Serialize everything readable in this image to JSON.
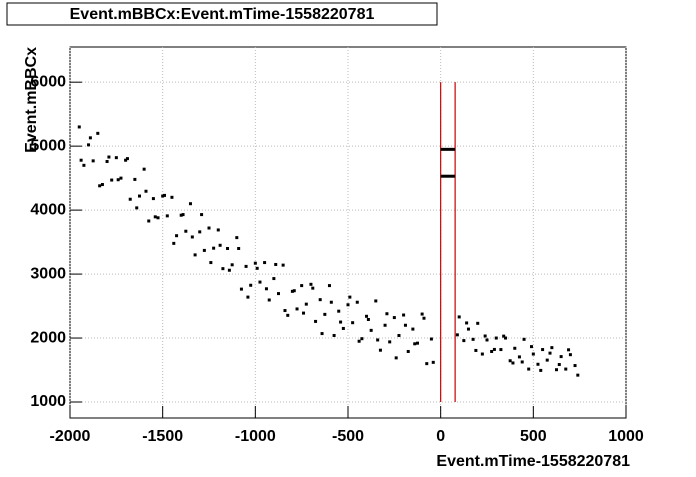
{
  "chart_data": {
    "type": "scatter",
    "title": "Event.mBBCx:Event.mTime-1558220781",
    "x_label": "Event.mTime-1558220781",
    "y_label": "Event.mBBCx",
    "xlim": [
      -2000,
      1000
    ],
    "ylim": [
      750,
      6550
    ],
    "xticks": [
      -2000,
      -1500,
      -1000,
      -500,
      0,
      500,
      1000
    ],
    "yticks": [
      1000,
      2000,
      3000,
      4000,
      5000,
      6000
    ],
    "grid": true,
    "color": "#000000",
    "cuts": [
      0,
      78
    ],
    "cut_range": [
      1000,
      6000
    ],
    "cut_color": "#cc0000",
    "segments": [
      4950,
      4530
    ],
    "x": [
      -1950,
      -1925,
      -1900,
      -1875,
      -1850,
      -1825,
      -1800,
      -1775,
      -1750,
      -1725,
      -1700,
      -1675,
      -1650,
      -1625,
      -1600,
      -1575,
      -1550,
      -1525,
      -1500,
      -1475,
      -1450,
      -1425,
      -1400,
      -1375,
      -1350,
      -1325,
      -1300,
      -1275,
      -1250,
      -1225,
      -1200,
      -1175,
      -1150,
      -1125,
      -1100,
      -1075,
      -1050,
      -1025,
      -1000,
      -975,
      -950,
      -925,
      -900,
      -875,
      -850,
      -825,
      -800,
      -775,
      -750,
      -725,
      -700,
      -675,
      -650,
      -625,
      -600,
      -575,
      -550,
      -525,
      -500,
      -475,
      -450,
      -425,
      -400,
      -375,
      -350,
      -325,
      -300,
      -275,
      -250,
      -225,
      -200,
      -175,
      -150,
      -125,
      -100,
      -75,
      -50,
      -1940,
      -1890,
      -1840,
      -1790,
      -1740,
      -1690,
      -1640,
      -1590,
      -1540,
      -1490,
      -1440,
      -1390,
      -1340,
      -1290,
      -1240,
      -1190,
      -1140,
      -1090,
      -1040,
      -990,
      -940,
      -890,
      -840,
      -790,
      -740,
      -690,
      -640,
      -590,
      -540,
      -490,
      -440,
      -390,
      -340,
      -290,
      -240,
      -190,
      -140,
      -90,
      -40,
      100,
      125,
      150,
      175,
      200,
      225,
      250,
      275,
      300,
      325,
      350,
      375,
      400,
      425,
      450,
      475,
      500,
      525,
      550,
      575,
      600,
      625,
      650,
      675,
      700,
      725,
      90,
      140,
      190,
      240,
      290,
      340,
      390,
      440,
      490,
      540,
      590,
      640,
      690,
      740
    ],
    "y": [
      5300,
      4700,
      5020,
      4770,
      5200,
      4400,
      4760,
      4470,
      4820,
      4500,
      4780,
      4170,
      4480,
      4220,
      4640,
      3830,
      4180,
      3880,
      4220,
      3910,
      4200,
      3600,
      3920,
      3670,
      4100,
      3300,
      3660,
      3370,
      3720,
      3405,
      3690,
      3085,
      3400,
      3145,
      3570,
      2765,
      3120,
      2825,
      3170,
      2875,
      3180,
      2595,
      2930,
      2695,
      3140,
      2355,
      2730,
      2455,
      2820,
      2530,
      2840,
      2260,
      2600,
      2370,
      2820,
      2040,
      2420,
      2150,
      2520,
      2240,
      2560,
      1990,
      2340,
      2120,
      2580,
      1810,
      2200,
      1940,
      2320,
      2040,
      2360,
      1790,
      2140,
      1920,
      2375,
      1600,
      1985,
      4780,
      5130,
      4380,
      4830,
      4475,
      4805,
      4035,
      4295,
      3895,
      4230,
      3480,
      3930,
      3580,
      3930,
      3180,
      3450,
      3060,
      3400,
      2640,
      3090,
      2770,
      3150,
      2430,
      2740,
      2390,
      2780,
      2070,
      2560,
      2250,
      2640,
      1950,
      2290,
      1970,
      2380,
      1690,
      2200,
      1910,
      2310,
      1620,
      2330,
      1960,
      2140,
      1980,
      2230,
      1750,
      1970,
      1790,
      2000,
      1820,
      2000,
      1645,
      1840,
      1705,
      1980,
      1515,
      1750,
      1590,
      1820,
      1655,
      1850,
      1505,
      1710,
      1515,
      1740,
      1570,
      2050,
      2236,
      1806,
      2032,
      1822,
      2030,
      1610,
      1626,
      1866,
      1494,
      1764,
      1586,
      1816,
      1420
    ]
  }
}
